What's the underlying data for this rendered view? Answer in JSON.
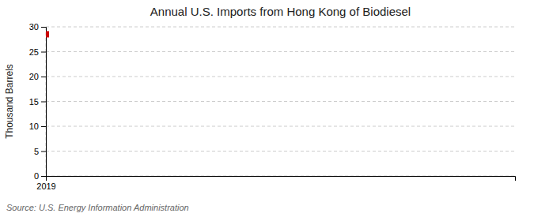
{
  "chart_data": {
    "type": "scatter",
    "title": "Annual U.S. Imports from Hong Kong of Biodiesel",
    "ylabel": "Thousand Barrels",
    "annotations": [
      "Source: U.S. Energy Information Administration"
    ],
    "x": [
      2019
    ],
    "values": [
      28.5
    ],
    "color": "#cc0000",
    "marker": "square",
    "xlim": [
      2019,
      2020
    ],
    "xticks": [
      2019
    ],
    "ylim": [
      0,
      30
    ],
    "yticks": [
      0,
      5,
      10,
      15,
      20,
      25,
      30
    ],
    "grid": true
  }
}
